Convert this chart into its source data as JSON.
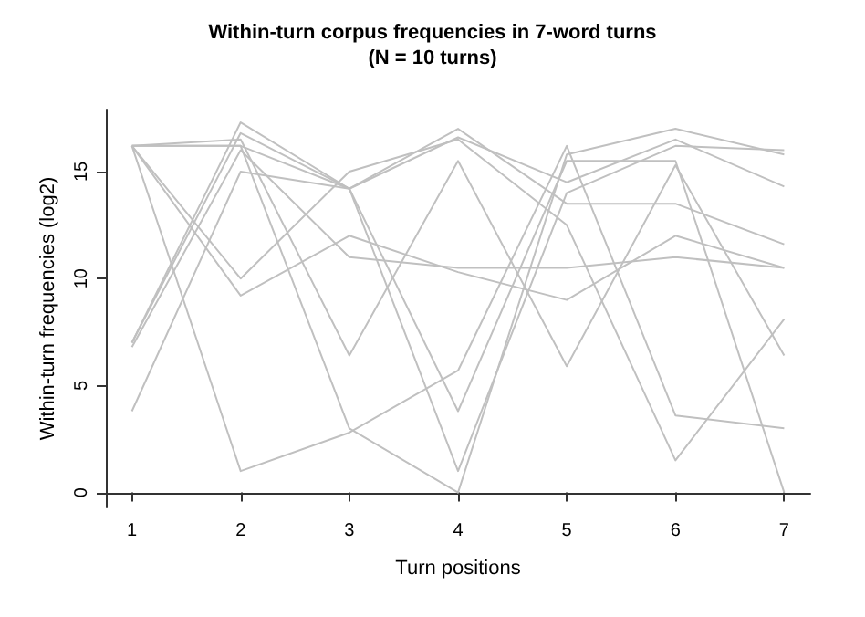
{
  "chart_data": {
    "type": "line",
    "title": "Within-turn corpus frequencies in 7-word turns\n(N = 10 turns)",
    "xlabel": "Turn positions",
    "ylabel": "Within-turn frequencies (log2)",
    "x": [
      1,
      2,
      3,
      4,
      5,
      6,
      7
    ],
    "series": [
      {
        "color": "#c0c0c0",
        "values": [
          16.2,
          16.2,
          14.2,
          16.6,
          14.5,
          16.5,
          14.3
        ]
      },
      {
        "color": "#c0c0c0",
        "values": [
          16.2,
          9.2,
          12.0,
          10.3,
          9.0,
          12.0,
          10.5
        ]
      },
      {
        "color": "#c0c0c0",
        "values": [
          16.2,
          1.0,
          2.8,
          5.7,
          16.2,
          3.6,
          3.0
        ]
      },
      {
        "color": "#c0c0c0",
        "values": [
          7.0,
          17.3,
          14.2,
          3.8,
          15.5,
          15.5,
          0.0
        ]
      },
      {
        "color": "#c0c0c0",
        "values": [
          7.0,
          16.8,
          14.2,
          1.0,
          14.0,
          16.2,
          16.0
        ]
      },
      {
        "color": "#c0c0c0",
        "values": [
          3.8,
          15.0,
          14.2,
          17.0,
          13.5,
          13.5,
          11.6
        ]
      },
      {
        "color": "#c0c0c0",
        "values": [
          16.2,
          16.5,
          6.4,
          15.5,
          5.9,
          15.3,
          6.4
        ]
      },
      {
        "color": "#c0c0c0",
        "values": [
          16.2,
          10.0,
          15.0,
          16.5,
          12.5,
          1.5,
          8.1
        ]
      },
      {
        "color": "#c0c0c0",
        "values": [
          16.2,
          16.2,
          3.0,
          0.0,
          15.8,
          17.0,
          15.8
        ]
      },
      {
        "color": "#c0c0c0",
        "values": [
          6.8,
          16.0,
          11.0,
          10.5,
          10.5,
          11.0,
          10.5
        ]
      }
    ],
    "xlim": [
      0.76,
      7.24
    ],
    "xticks": [
      1,
      2,
      3,
      4,
      5,
      6,
      7
    ],
    "ylim": [
      -0.7,
      17.9
    ],
    "yticks": [
      0,
      5,
      10,
      15
    ],
    "grid": false,
    "marker": "none",
    "line_style": "solid"
  }
}
